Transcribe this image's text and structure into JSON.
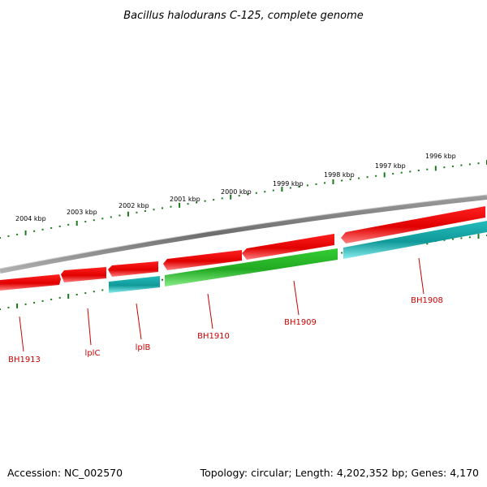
{
  "title": "Bacillus halodurans C-125, complete genome",
  "footer": {
    "accession": "Accession: NC_002570",
    "topology": "Topology: circular; Length: 4,202,352 bp; Genes: 4,170"
  },
  "colors": {
    "backbone": "#808080",
    "tick_green": "#1a7a1a",
    "forward_gene": "#ff0000",
    "reverse_cds": "#33cc33",
    "reverse_other": "#22cccc",
    "label_red": "#cc0000"
  },
  "ruler_labels": [
    "2004 kbp",
    "2003 kbp",
    "2002 kbp",
    "2001 kbp",
    "2000 kbp",
    "1999 kbp",
    "1998 kbp",
    "1997 kbp",
    "1996 kbp"
  ],
  "genes": [
    {
      "name": "BH1913",
      "strand": "forward",
      "type": "cds"
    },
    {
      "name": "lplC",
      "strand": "forward",
      "type": "cds"
    },
    {
      "name": "lplB",
      "strand": "reverse",
      "type": "other"
    },
    {
      "name": "BH1910",
      "strand": "forward",
      "type": "cds"
    },
    {
      "name": "BH1909",
      "strand": "forward",
      "type": "cds"
    },
    {
      "name": "BH1908",
      "strand": "forward",
      "type": "cds"
    },
    {
      "name": "",
      "strand": "reverse",
      "type": "cds"
    },
    {
      "name": "",
      "strand": "reverse",
      "type": "other"
    }
  ]
}
